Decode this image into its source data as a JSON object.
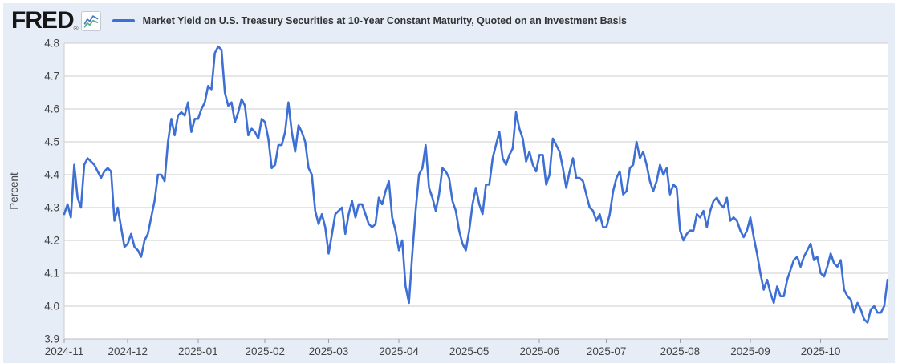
{
  "header": {
    "logo_text": "FRED",
    "registered_mark": "®",
    "legend_label": "Market Yield on U.S. Treasury Securities at 10-Year Constant Maturity, Quoted on an Investment Basis"
  },
  "colors": {
    "panel_background": "#e7edf7",
    "plot_background": "#ffffff",
    "gridline": "#cccccc",
    "axis_text": "#424242",
    "line": "#3d6fd4",
    "legend_icon_blue": "#4a78c2",
    "legend_icon_green": "#54b28d"
  },
  "chart_data": {
    "type": "line",
    "title": "Market Yield on U.S. Treasury Securities at 10-Year Constant Maturity, Quoted on an Investment Basis",
    "xlabel": "",
    "ylabel": "Percent",
    "ylim": [
      3.9,
      4.8
    ],
    "ytick_step": 0.1,
    "grid": true,
    "legend_position": "top-left",
    "x_tick_labels": [
      "2024-11",
      "2024-12",
      "2025-01",
      "2025-02",
      "2025-03",
      "2025-04",
      "2025-05",
      "2025-06",
      "2025-07",
      "2025-08",
      "2025-09",
      "2025-10"
    ],
    "series": [
      {
        "name": "Market Yield on U.S. Treasury Securities at 10-Year Constant Maturity, Quoted on an Investment Basis",
        "unit": "Percent",
        "months": [
          {
            "month": "2024-11",
            "values": [
              4.28,
              4.31,
              4.27,
              4.43,
              4.33,
              4.3,
              4.43,
              4.45,
              4.44,
              4.43,
              4.41,
              4.39,
              4.41,
              4.42,
              4.41,
              4.26,
              4.3,
              4.24,
              4.18
            ]
          },
          {
            "month": "2024-12",
            "values": [
              4.19,
              4.22,
              4.18,
              4.17,
              4.15,
              4.2,
              4.22,
              4.27,
              4.32,
              4.4,
              4.4,
              4.38,
              4.5,
              4.57,
              4.52,
              4.58,
              4.59,
              4.58,
              4.62,
              4.53,
              4.57
            ]
          },
          {
            "month": "2025-01",
            "values": [
              4.57,
              4.6,
              4.62,
              4.67,
              4.66,
              4.77,
              4.79,
              4.78,
              4.65,
              4.61,
              4.62,
              4.56,
              4.59,
              4.63,
              4.61,
              4.52,
              4.54,
              4.53,
              4.51,
              4.57
            ]
          },
          {
            "month": "2025-02",
            "values": [
              4.56,
              4.51,
              4.42,
              4.43,
              4.49,
              4.49,
              4.53,
              4.62,
              4.53,
              4.47,
              4.55,
              4.53,
              4.5,
              4.42,
              4.4,
              4.29,
              4.25,
              4.28,
              4.24
            ]
          },
          {
            "month": "2025-03",
            "values": [
              4.16,
              4.22,
              4.28,
              4.29,
              4.3,
              4.22,
              4.28,
              4.32,
              4.27,
              4.31,
              4.31,
              4.28,
              4.25,
              4.24,
              4.25,
              4.33,
              4.31,
              4.35,
              4.38,
              4.27,
              4.23
            ]
          },
          {
            "month": "2025-04",
            "values": [
              4.17,
              4.2,
              4.06,
              4.01,
              4.16,
              4.29,
              4.4,
              4.42,
              4.49,
              4.36,
              4.33,
              4.29,
              4.34,
              4.42,
              4.41,
              4.39,
              4.32,
              4.29,
              4.23,
              4.19,
              4.17
            ]
          },
          {
            "month": "2025-05",
            "values": [
              4.23,
              4.31,
              4.36,
              4.31,
              4.28,
              4.37,
              4.37,
              4.45,
              4.49,
              4.53,
              4.45,
              4.43,
              4.46,
              4.48,
              4.59,
              4.54,
              4.51,
              4.44,
              4.47,
              4.43,
              4.41
            ]
          },
          {
            "month": "2025-06",
            "values": [
              4.46,
              4.46,
              4.37,
              4.4,
              4.51,
              4.49,
              4.47,
              4.42,
              4.36,
              4.41,
              4.45,
              4.39,
              4.39,
              4.38,
              4.34,
              4.3,
              4.29,
              4.26,
              4.28,
              4.24
            ]
          },
          {
            "month": "2025-07",
            "values": [
              4.24,
              4.28,
              4.35,
              4.39,
              4.41,
              4.34,
              4.35,
              4.42,
              4.43,
              4.5,
              4.45,
              4.47,
              4.43,
              4.38,
              4.35,
              4.38,
              4.43,
              4.4,
              4.42,
              4.34,
              4.37,
              4.36
            ]
          },
          {
            "month": "2025-08",
            "values": [
              4.23,
              4.2,
              4.22,
              4.23,
              4.23,
              4.28,
              4.27,
              4.29,
              4.24,
              4.29,
              4.32,
              4.33,
              4.31,
              4.3,
              4.33,
              4.26,
              4.27,
              4.26,
              4.23,
              4.21,
              4.23
            ]
          },
          {
            "month": "2025-09",
            "values": [
              4.27,
              4.21,
              4.16,
              4.1,
              4.05,
              4.08,
              4.04,
              4.01,
              4.06,
              4.03,
              4.03,
              4.08,
              4.11,
              4.14,
              4.15,
              4.12,
              4.15,
              4.17,
              4.19,
              4.14,
              4.15
            ]
          },
          {
            "month": "2025-10",
            "values": [
              4.1,
              4.09,
              4.12,
              4.16,
              4.13,
              4.12,
              4.14,
              4.05,
              4.03,
              4.02,
              3.98,
              4.01,
              3.99,
              3.96,
              3.95,
              3.99,
              4.0,
              3.98,
              3.98,
              4.0,
              4.08
            ]
          }
        ]
      }
    ]
  }
}
